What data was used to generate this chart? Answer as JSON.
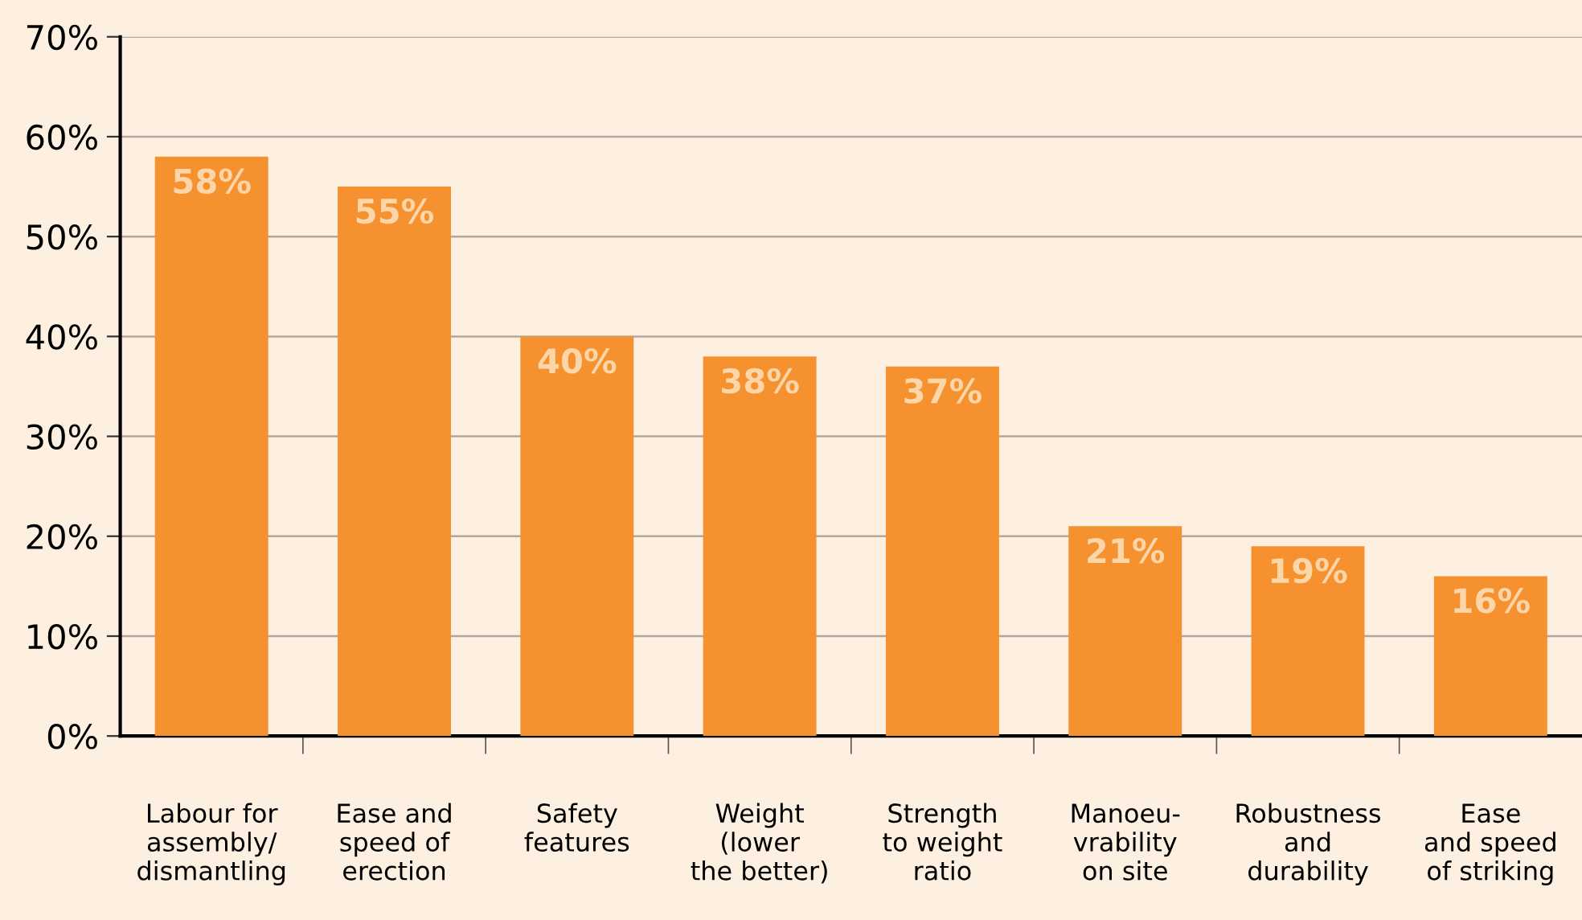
{
  "chart_data": {
    "type": "bar",
    "categories": [
      "Labour for\nassembly/\ndismantling",
      "Ease and\nspeed of\nerection",
      "Safety\nfeatures",
      "Weight\n(lower\nthe better)",
      "Strength\nto weight\nratio",
      "Manoeu-\nvrability\non site",
      "Robustness\nand\ndurability",
      "Ease\nand speed\nof striking"
    ],
    "values": [
      58,
      55,
      40,
      38,
      37,
      21,
      19,
      16
    ],
    "value_labels": [
      "58%",
      "55%",
      "40%",
      "38%",
      "37%",
      "21%",
      "19%",
      "16%"
    ],
    "color": "#f5922f",
    "ylim": [
      0,
      70
    ],
    "yticks": [
      {
        "value": 0,
        "label": "0%"
      },
      {
        "value": 10,
        "label": "10%"
      },
      {
        "value": 20,
        "label": "20%"
      },
      {
        "value": 30,
        "label": "30%"
      },
      {
        "value": 40,
        "label": "40%"
      },
      {
        "value": 50,
        "label": "50%"
      },
      {
        "value": 60,
        "label": "60%"
      },
      {
        "value": 70,
        "label": "70%"
      }
    ],
    "grid": "y",
    "legend": false
  }
}
